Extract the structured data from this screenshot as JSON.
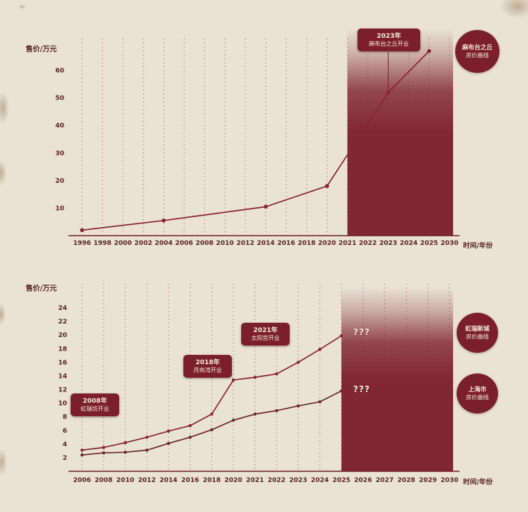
{
  "page": {
    "background": "#e9e2d5",
    "accent": "#8a2433",
    "accent_dark": "#7a1f2b"
  },
  "chart_data": [
    {
      "type": "line",
      "title": "",
      "ylabel": "售价/万元",
      "xlabel": "时间/年份",
      "categories": [
        "1996",
        "1998",
        "2000",
        "2002",
        "2004",
        "2006",
        "2008",
        "2010",
        "2012",
        "2014",
        "2016",
        "2018",
        "2020",
        "2021",
        "2022",
        "2023",
        "2024",
        "2025",
        "2030"
      ],
      "yticks": [
        10,
        20,
        30,
        40,
        50,
        60
      ],
      "ylim": [
        0,
        70
      ],
      "grid": "dashed-vertical",
      "legend_position": "right",
      "shade": {
        "from": "2021",
        "to": "2030"
      },
      "series": [
        {
          "name": "麻布台之丘房价曲线",
          "color": "#8a2433",
          "points": [
            [
              "1996",
              2
            ],
            [
              "2004",
              5.5
            ],
            [
              "2014",
              10.5
            ],
            [
              "2020",
              18
            ],
            [
              "2023",
              52
            ],
            [
              "2025",
              67
            ]
          ]
        }
      ],
      "annotations": [
        {
          "x": "2023",
          "line1": "2023年",
          "line2": "麻布台之丘开业"
        }
      ],
      "legend": [
        {
          "line1": "麻布台之丘",
          "line2": "房价曲线"
        }
      ]
    },
    {
      "type": "line",
      "title": "",
      "ylabel": "售价/万元",
      "xlabel": "时间/年份",
      "categories": [
        "2006",
        "2008",
        "2010",
        "2012",
        "2014",
        "2016",
        "2018",
        "2020",
        "2021",
        "2022",
        "2023",
        "2024",
        "2025",
        "2026",
        "2027",
        "2028",
        "2029",
        "2030"
      ],
      "yticks": [
        2,
        4,
        6,
        8,
        10,
        12,
        14,
        16,
        18,
        20,
        22,
        24
      ],
      "ylim": [
        0,
        26
      ],
      "grid": "dashed-vertical",
      "legend_position": "right",
      "shade": {
        "from": "2025",
        "to": "2030"
      },
      "series": [
        {
          "name": "虹瑞新城房价曲线",
          "color": "#8a2433",
          "end_label": "???",
          "points": [
            [
              "2006",
              3.1
            ],
            [
              "2008",
              3.5
            ],
            [
              "2010",
              4.2
            ],
            [
              "2012",
              5.0
            ],
            [
              "2014",
              5.9
            ],
            [
              "2016",
              6.7
            ],
            [
              "2018",
              8.4
            ],
            [
              "2020",
              13.4
            ],
            [
              "2021",
              13.8
            ],
            [
              "2022",
              14.3
            ],
            [
              "2023",
              16.0
            ],
            [
              "2024",
              17.9
            ],
            [
              "2025",
              19.9
            ]
          ]
        },
        {
          "name": "上海市房价曲线",
          "color": "#6b2a28",
          "end_label": "???",
          "points": [
            [
              "2006",
              2.4
            ],
            [
              "2008",
              2.7
            ],
            [
              "2010",
              2.8
            ],
            [
              "2012",
              3.1
            ],
            [
              "2014",
              4.1
            ],
            [
              "2016",
              5.0
            ],
            [
              "2018",
              6.1
            ],
            [
              "2020",
              7.5
            ],
            [
              "2021",
              8.4
            ],
            [
              "2022",
              8.9
            ],
            [
              "2023",
              9.6
            ],
            [
              "2024",
              10.2
            ],
            [
              "2025",
              11.8
            ]
          ]
        }
      ],
      "annotations": [
        {
          "x": "2008",
          "line1": "2008年",
          "line2": "虹瑞坊开业"
        },
        {
          "x": "2018",
          "line1": "2018年",
          "line2": "月亮湾开业"
        },
        {
          "x": "2021",
          "line1": "2021年",
          "line2": "太阳宫开业"
        }
      ],
      "legend": [
        {
          "line1": "虹瑞新城",
          "line2": "房价曲线"
        },
        {
          "line1": "上海市",
          "line2": "房价曲线"
        }
      ]
    }
  ]
}
